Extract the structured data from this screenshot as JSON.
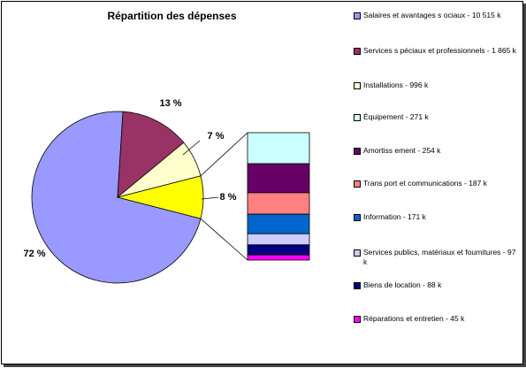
{
  "chart_data": {
    "type": "pie",
    "title": "Répartition des dépenses",
    "pie": {
      "slices": [
        {
          "label": "72 %",
          "value": 72,
          "color": "#9999FF"
        },
        {
          "label": "13 %",
          "value": 13,
          "color": "#993366"
        },
        {
          "label": "7 %",
          "value": 7,
          "color": "#FFFFCC"
        },
        {
          "label": "8 %",
          "value": 8,
          "color": "#FFFF00"
        }
      ]
    },
    "bar_of_pie": {
      "segments": [
        {
          "label": "Équipement - 271 k",
          "value": 271,
          "color": "#CCFFFF"
        },
        {
          "label": "Amortiss ement - 254 k",
          "value": 254,
          "color": "#660066"
        },
        {
          "label": "Trans port et communications - 187 k",
          "value": 187,
          "color": "#FF8080"
        },
        {
          "label": "Information - 171 k",
          "value": 171,
          "color": "#0066CC"
        },
        {
          "label": "Services publics, matériaux et fournitures - 97 k",
          "value": 97,
          "color": "#CCCCFF"
        },
        {
          "label": "Biens de location - 88 k",
          "value": 88,
          "color": "#000080"
        },
        {
          "label": "Réparations et entretien - 45 k",
          "value": 45,
          "color": "#FF00FF"
        }
      ]
    },
    "legend": {
      "placement": "right",
      "items": [
        {
          "label": "Salaires et avantages s ociaux - 10 515 k",
          "color": "#9999FF"
        },
        {
          "label": "Services s péciaux et professionnels - 1 865 k",
          "color": "#993366"
        },
        {
          "label": "Installations - 996 k",
          "color": "#FFFFCC"
        },
        {
          "label": "Équipement - 271 k",
          "color": "#CCFFFF"
        },
        {
          "label": "Amortiss ement - 254 k",
          "color": "#660066"
        },
        {
          "label": "Trans port et communications - 187 k",
          "color": "#FF8080"
        },
        {
          "label": "Information - 171 k",
          "color": "#0066CC"
        },
        {
          "label": "Services publics, matériaux et fournitures - 97 k",
          "color": "#CCCCFF"
        },
        {
          "label": "Biens de location - 88 k",
          "color": "#000080"
        },
        {
          "label": "Réparations et entretien - 45 k",
          "color": "#FF00FF"
        }
      ]
    }
  }
}
